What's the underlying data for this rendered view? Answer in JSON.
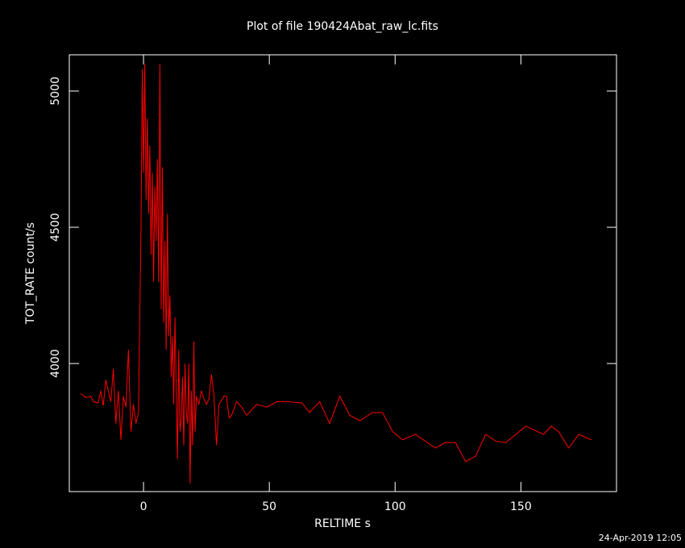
{
  "chart_data": {
    "type": "line",
    "title": "Plot of file 190424Abat_raw_lc.fits",
    "x_label": "RELTIME  s",
    "y_label": "TOT_RATE  count/s",
    "footer": "24-Apr-2019 12:05",
    "x": [
      -25,
      -23,
      -21,
      -20,
      -18,
      -17,
      -16,
      -15,
      -13,
      -12,
      -11,
      -10,
      -9,
      -8,
      -7,
      -6,
      -5,
      -4,
      -3,
      -2,
      -1,
      -0.5,
      0,
      0.5,
      1,
      1.5,
      2,
      2.5,
      3,
      3.5,
      4,
      4.5,
      5,
      5.5,
      6,
      6.5,
      7,
      7.5,
      8,
      8.5,
      9,
      9.5,
      10,
      10.5,
      11,
      11.5,
      12,
      12.5,
      13,
      13.5,
      14,
      14.5,
      15,
      15.5,
      16,
      16.5,
      17,
      17.5,
      18,
      18.5,
      19,
      19.5,
      20,
      20.5,
      21,
      22,
      23,
      24,
      25,
      26,
      27,
      28,
      29,
      30,
      32,
      33,
      34,
      35,
      37,
      39,
      41,
      45,
      49,
      53,
      57,
      63,
      66,
      70,
      74,
      78,
      82,
      86,
      91,
      95,
      99,
      103,
      108,
      116,
      120,
      124,
      128,
      132,
      136,
      140,
      144,
      152,
      159,
      162,
      165,
      169,
      173,
      178
    ],
    "series": [
      {
        "name": "TOT_RATE",
        "color": "#ff0000",
        "values": [
          3890,
          3875,
          3880,
          3860,
          3855,
          3900,
          3845,
          3940,
          3860,
          3980,
          3780,
          3900,
          3720,
          3880,
          3840,
          4050,
          3750,
          3850,
          3780,
          3820,
          4500,
          5080,
          4700,
          5100,
          4600,
          4900,
          4550,
          4800,
          4400,
          4700,
          4300,
          4650,
          4450,
          4750,
          4300,
          5100,
          4200,
          4720,
          4150,
          4450,
          4050,
          4550,
          4100,
          4250,
          3950,
          4100,
          3850,
          4170,
          3900,
          3650,
          4050,
          3750,
          3800,
          3950,
          3700,
          4000,
          3820,
          3780,
          4000,
          3560,
          3900,
          3700,
          4080,
          3750,
          3880,
          3850,
          3900,
          3870,
          3850,
          3870,
          3960,
          3880,
          3700,
          3850,
          3880,
          3880,
          3800,
          3810,
          3860,
          3840,
          3810,
          3850,
          3840,
          3860,
          3860,
          3855,
          3820,
          3860,
          3780,
          3880,
          3810,
          3790,
          3820,
          3820,
          3750,
          3720,
          3740,
          3690,
          3710,
          3710,
          3640,
          3660,
          3740,
          3715,
          3710,
          3770,
          3740,
          3770,
          3750,
          3690,
          3740,
          3720
        ]
      }
    ],
    "xlim": [
      -29.5,
      188
    ],
    "ylim": [
      3530,
      5133
    ],
    "xticks": [
      0,
      50,
      100,
      150
    ],
    "yticks": [
      4000,
      4500,
      5000
    ],
    "background": "#000000",
    "axis_color": "#ffffff"
  }
}
